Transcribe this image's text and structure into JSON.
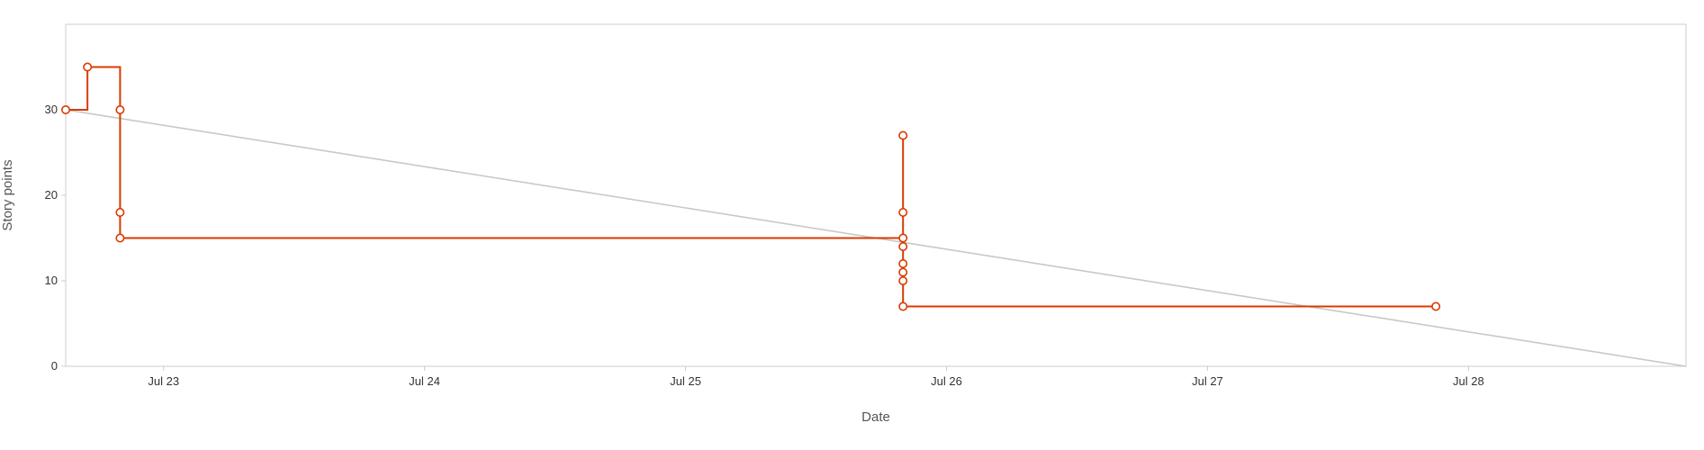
{
  "chart_data": {
    "type": "line",
    "xlabel": "Date",
    "ylabel": "Story points",
    "x_ticks": [
      "Jul 23",
      "Jul 24",
      "Jul 25",
      "Jul 26",
      "Jul 27",
      "Jul 28"
    ],
    "y_ticks": [
      0,
      10,
      20,
      30
    ],
    "xlim": [
      "2023-07-22T15:00",
      "2023-07-28T20:00"
    ],
    "ylim": [
      0,
      40
    ],
    "grid": false,
    "series": [
      {
        "kind": "step",
        "color": "#d83b01",
        "points": [
          {
            "x": "2023-07-22T15:00",
            "y": 30
          },
          {
            "x": "2023-07-22T17:00",
            "y": 35
          },
          {
            "x": "2023-07-22T20:00",
            "y": 30
          },
          {
            "x": "2023-07-22T20:00",
            "y": 18
          },
          {
            "x": "2023-07-22T20:00",
            "y": 15
          },
          {
            "x": "2023-07-25T20:00",
            "y": 27
          },
          {
            "x": "2023-07-25T20:00",
            "y": 18
          },
          {
            "x": "2023-07-25T20:00",
            "y": 15
          },
          {
            "x": "2023-07-25T20:00",
            "y": 14
          },
          {
            "x": "2023-07-25T20:00",
            "y": 12
          },
          {
            "x": "2023-07-25T20:00",
            "y": 11
          },
          {
            "x": "2023-07-25T20:00",
            "y": 10
          },
          {
            "x": "2023-07-25T20:00",
            "y": 7
          },
          {
            "x": "2023-07-27T21:00",
            "y": 7
          }
        ]
      },
      {
        "kind": "ideal-trend",
        "color": "#c8c8c8",
        "points": [
          {
            "x": "2023-07-22T15:00",
            "y": 30
          },
          {
            "x": "2023-07-28T20:00",
            "y": 0
          }
        ]
      }
    ]
  }
}
